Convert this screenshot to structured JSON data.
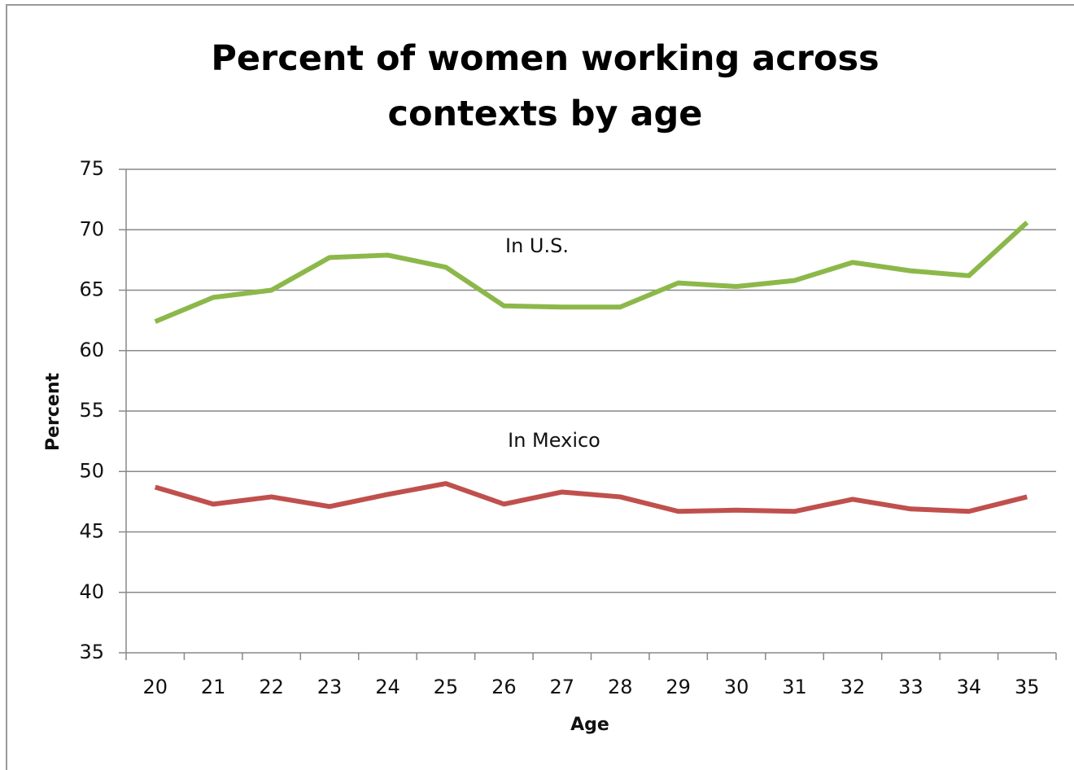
{
  "chart_data": {
    "type": "line",
    "title": "Percent of women working across contexts by age",
    "x_label": "Age",
    "y_label": "Percent",
    "categories": [
      "20",
      "21",
      "22",
      "23",
      "24",
      "25",
      "26",
      "27",
      "28",
      "29",
      "30",
      "31",
      "32",
      "33",
      "34",
      "35"
    ],
    "series": [
      {
        "name": "In U.S.",
        "color": "#8cb84a",
        "values": [
          62.4,
          64.4,
          65.0,
          67.7,
          67.9,
          66.9,
          63.7,
          63.6,
          63.6,
          65.6,
          65.3,
          65.8,
          67.3,
          66.6,
          66.2,
          70.6
        ]
      },
      {
        "name": "In Mexico",
        "color": "#c0504d",
        "values": [
          48.7,
          47.3,
          47.9,
          47.1,
          48.1,
          49.0,
          47.3,
          48.3,
          47.9,
          46.7,
          46.8,
          46.7,
          47.7,
          46.9,
          46.7,
          47.9
        ]
      }
    ],
    "ylim": [
      35,
      75
    ],
    "yticks": [
      35,
      40,
      45,
      50,
      55,
      60,
      65,
      70,
      75
    ],
    "grid": true
  }
}
